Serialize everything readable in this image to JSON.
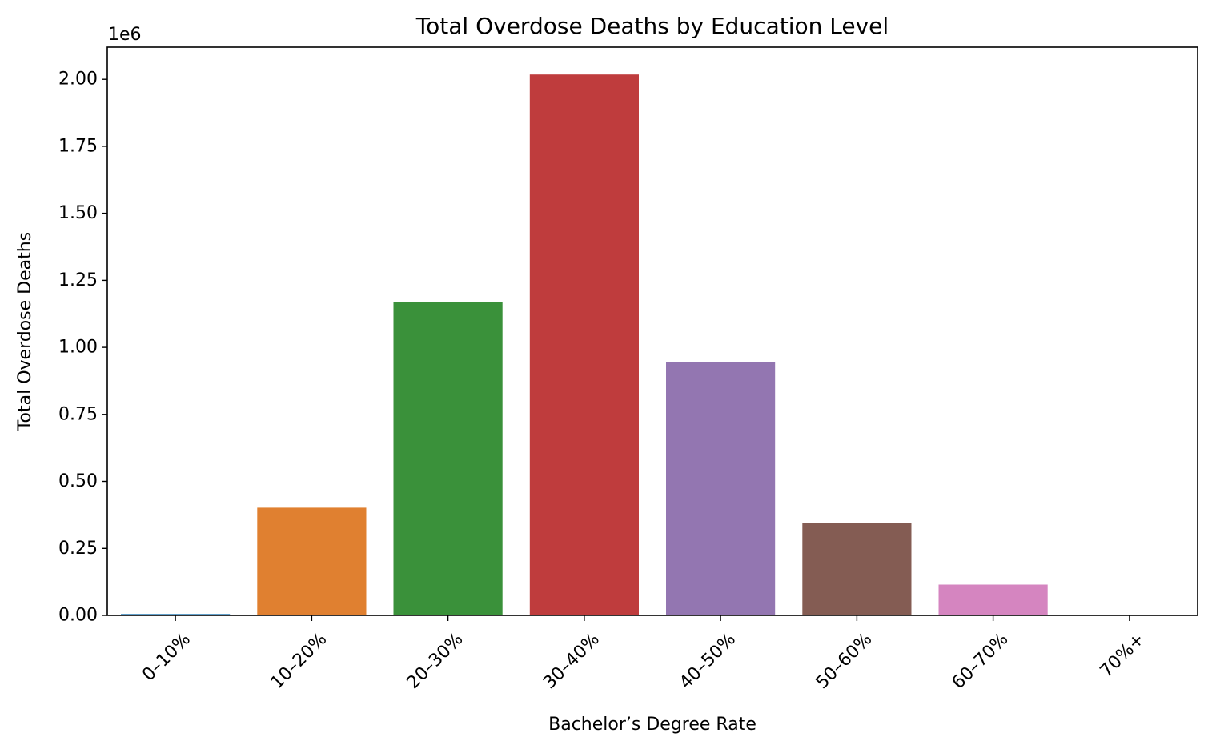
{
  "chart_data": {
    "type": "bar",
    "title": "Total Overdose Deaths by Education Level",
    "xlabel": "Bachelor’s Degree Rate",
    "ylabel": "Total Overdose Deaths",
    "y_offset_label": "1e6",
    "categories": [
      "0–10%",
      "10–20%",
      "20–30%",
      "30–40%",
      "40–50%",
      "50–60%",
      "60–70%",
      "70%+"
    ],
    "values": [
      5000,
      402000,
      1170000,
      2018000,
      946000,
      345000,
      115000,
      0
    ],
    "colors": [
      "#1f77b4",
      "#e08030",
      "#3a913a",
      "#bf3c3d",
      "#9376b1",
      "#845c53",
      "#d585c0",
      "#7f7f7f"
    ],
    "ylim": [
      0,
      2120000
    ],
    "yticks": [
      0,
      250000,
      500000,
      750000,
      1000000,
      1250000,
      1500000,
      1750000,
      2000000
    ],
    "ytick_labels": [
      "0.00",
      "0.25",
      "0.50",
      "0.75",
      "1.00",
      "1.25",
      "1.50",
      "1.75",
      "2.00"
    ],
    "grid": false,
    "legend": "none"
  }
}
